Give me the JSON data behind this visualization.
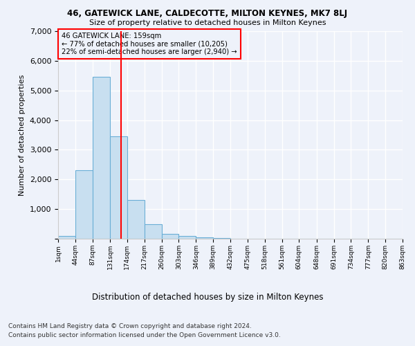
{
  "title": "46, GATEWICK LANE, CALDECOTTE, MILTON KEYNES, MK7 8LJ",
  "subtitle": "Size of property relative to detached houses in Milton Keynes",
  "xlabel": "Distribution of detached houses by size in Milton Keynes",
  "ylabel": "Number of detached properties",
  "footer_line1": "Contains HM Land Registry data © Crown copyright and database right 2024.",
  "footer_line2": "Contains public sector information licensed under the Open Government Licence v3.0.",
  "annotation_line1": "46 GATEWICK LANE: 159sqm",
  "annotation_line2": "← 77% of detached houses are smaller (10,205)",
  "annotation_line3": "22% of semi-detached houses are larger (2,940) →",
  "property_size": 159,
  "bin_edges": [
    1,
    44,
    87,
    131,
    174,
    217,
    260,
    303,
    346,
    389,
    432,
    475,
    518,
    561,
    604,
    648,
    691,
    734,
    777,
    820,
    863
  ],
  "bar_heights": [
    100,
    2300,
    5450,
    3450,
    1300,
    480,
    175,
    100,
    50,
    30,
    10,
    5,
    3,
    2,
    1,
    0,
    0,
    0,
    0,
    0
  ],
  "bar_color": "#c8dff0",
  "bar_edge_color": "#6aaed6",
  "vline_color": "red",
  "background_color": "#eef2fa",
  "grid_color": "#ffffff",
  "annotation_box_color": "red",
  "ylim": [
    0,
    7000
  ],
  "yticks": [
    0,
    1000,
    2000,
    3000,
    4000,
    5000,
    6000,
    7000
  ]
}
